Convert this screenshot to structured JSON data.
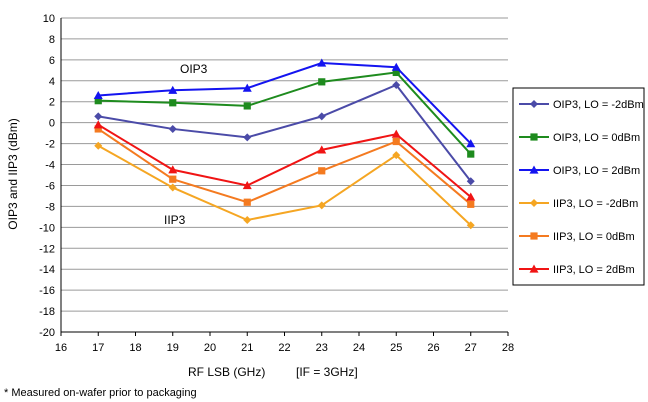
{
  "chart_data": {
    "type": "line",
    "title": "",
    "xlabel": "RF LSB (GHz)",
    "xlabel_note": "[IF = 3GHz]",
    "ylabel": "OIP3 and IIP3 (dBm)",
    "xlim": [
      16,
      28
    ],
    "ylim": [
      -20,
      10
    ],
    "x_ticks": [
      16,
      17,
      18,
      19,
      20,
      21,
      22,
      23,
      24,
      25,
      26,
      27,
      28
    ],
    "y_ticks": [
      -20,
      -18,
      -16,
      -14,
      -12,
      -10,
      -8,
      -6,
      -4,
      -2,
      0,
      2,
      4,
      6,
      8,
      10
    ],
    "grid": "horizontal",
    "legend_position": "right",
    "x": [
      17,
      19,
      21,
      23,
      25,
      27
    ],
    "series": [
      {
        "name": "OIP3, LO = -2dBm",
        "color": "#4B4BA8",
        "marker": "diamond",
        "values": [
          0.6,
          -0.6,
          -1.4,
          0.6,
          3.6,
          -5.6
        ]
      },
      {
        "name": "OIP3, LO = 0dBm",
        "color": "#1E8B1E",
        "marker": "square",
        "values": [
          2.1,
          1.9,
          1.6,
          3.9,
          4.8,
          -3.0
        ]
      },
      {
        "name": "OIP3, LO = 2dBm",
        "color": "#1414F0",
        "marker": "triangle",
        "values": [
          2.6,
          3.1,
          3.3,
          5.7,
          5.3,
          -2.0
        ]
      },
      {
        "name": "IIP3, LO = -2dBm",
        "color": "#F5A623",
        "marker": "diamond",
        "values": [
          -2.2,
          -6.2,
          -9.3,
          -7.9,
          -3.1,
          -9.8
        ]
      },
      {
        "name": "IIP3, LO = 0dBm",
        "color": "#F47A20",
        "marker": "square",
        "values": [
          -0.6,
          -5.4,
          -7.6,
          -4.6,
          -1.8,
          -7.8
        ]
      },
      {
        "name": "IIP3, LO = 2dBm",
        "color": "#F01414",
        "marker": "triangle",
        "values": [
          -0.2,
          -4.5,
          -6.0,
          -2.6,
          -1.1,
          -7.1
        ]
      }
    ],
    "annotations": [
      "OIP3",
      "IIP3"
    ]
  },
  "footnote": "* Measured on-wafer prior to packaging"
}
